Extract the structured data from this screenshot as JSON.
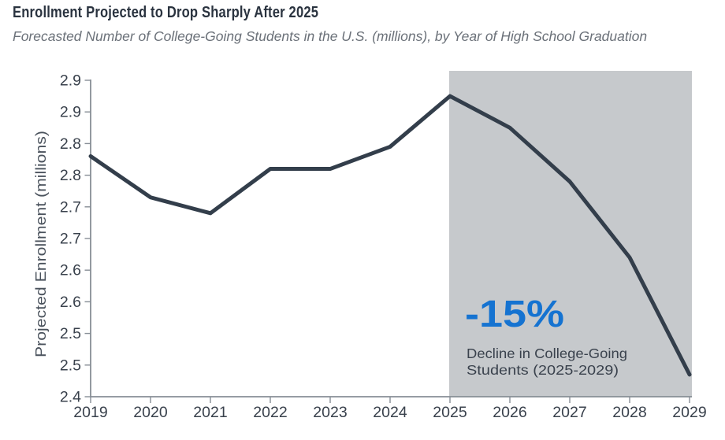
{
  "chart_data": {
    "type": "line",
    "title": "Enrollment Projected to Drop Sharply After 2025",
    "subtitle": "Forecasted Number of College-Going Students in the U.S. (millions), by Year of High School Graduation",
    "xlabel": "",
    "ylabel": "Projected Enrollment (millions)",
    "x": [
      2019,
      2020,
      2021,
      2022,
      2023,
      2024,
      2025,
      2026,
      2027,
      2028,
      2029
    ],
    "xtick_labels": [
      "2019",
      "2020",
      "2021",
      "2022",
      "2023",
      "2024",
      "2025",
      "2026",
      "2027",
      "2028",
      "2029"
    ],
    "values": [
      2.78,
      2.715,
      2.69,
      2.76,
      2.76,
      2.795,
      2.875,
      2.825,
      2.74,
      2.62,
      2.435
    ],
    "ylim": [
      2.4,
      2.915
    ],
    "yticks": [
      2.9,
      2.85,
      2.8,
      2.75,
      2.7,
      2.65,
      2.6,
      2.55,
      2.5,
      2.45,
      2.4
    ],
    "ytick_labels": [
      "2.9",
      "2.9",
      "2.8",
      "2.8",
      "2.7",
      "2.7",
      "2.6",
      "2.6",
      "2.5",
      "2.5",
      "2.4"
    ],
    "grid": false,
    "legend": false,
    "line_color": "#333e4b",
    "shaded_region": {
      "from_year": 2025,
      "to_year": 2029,
      "color": "#c6c9cc"
    },
    "annotation": {
      "headline": "-15%",
      "headline_color": "#1573d1",
      "line1": "Decline in College-Going",
      "line2": "Students (2025-2029)"
    }
  }
}
